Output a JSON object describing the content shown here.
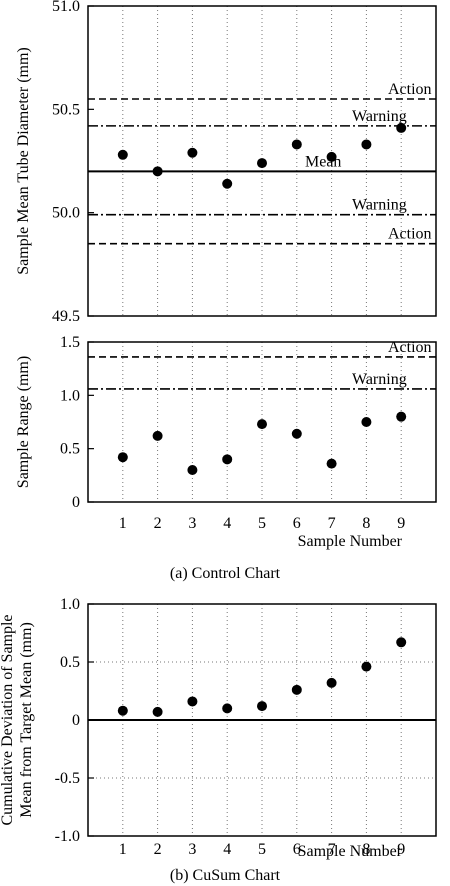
{
  "chart_data": [
    {
      "type": "scatter",
      "ylabel": "Sample Mean Tube Diameter (mm)",
      "xlabel": "",
      "x": [
        1,
        2,
        3,
        4,
        5,
        6,
        7,
        8,
        9
      ],
      "y": [
        50.28,
        50.2,
        50.29,
        50.14,
        50.24,
        50.33,
        50.27,
        50.33,
        50.41
      ],
      "xlim": [
        0,
        10
      ],
      "ylim": [
        49.5,
        51.0
      ],
      "yticks": [
        "49.5",
        "50.0",
        "50.5",
        "51.0"
      ],
      "xtick_labels_shown": false,
      "grid": "x-dotted",
      "reference_lines": [
        {
          "label": "Action",
          "y": 50.55,
          "style": "dashed"
        },
        {
          "label": "Warning",
          "y": 50.42,
          "style": "dashdot"
        },
        {
          "label": "Mean",
          "y": 50.2,
          "style": "solid"
        },
        {
          "label": "Warning",
          "y": 49.99,
          "style": "dashdot"
        },
        {
          "label": "Action",
          "y": 49.85,
          "style": "dashed"
        }
      ]
    },
    {
      "type": "scatter",
      "ylabel": "Sample Range (mm)",
      "xlabel": "Sample Number",
      "x": [
        1,
        2,
        3,
        4,
        5,
        6,
        7,
        8,
        9
      ],
      "y": [
        0.42,
        0.62,
        0.3,
        0.4,
        0.73,
        0.64,
        0.36,
        0.75,
        0.8
      ],
      "xlim": [
        0,
        10
      ],
      "ylim": [
        0,
        1.5
      ],
      "yticks": [
        "0",
        "0.5",
        "1.0",
        "1.5"
      ],
      "xticks": [
        "1",
        "2",
        "3",
        "4",
        "5",
        "6",
        "7",
        "8",
        "9"
      ],
      "grid": "x-dotted",
      "reference_lines": [
        {
          "label": "Action",
          "y": 1.36,
          "style": "dashed"
        },
        {
          "label": "Warning",
          "y": 1.06,
          "style": "dashdot"
        }
      ]
    },
    {
      "type": "scatter",
      "ylabel": "Cumulative Deviation of Sample Mean from Target Mean (mm)",
      "ylabel_lines": [
        "Cumulative Deviation of Sample",
        "Mean from Target Mean (mm)"
      ],
      "xlabel": "Sample Number",
      "x": [
        1,
        2,
        3,
        4,
        5,
        6,
        7,
        8,
        9
      ],
      "y": [
        0.08,
        0.07,
        0.16,
        0.1,
        0.12,
        0.26,
        0.32,
        0.46,
        0.67
      ],
      "xlim": [
        0,
        10
      ],
      "ylim": [
        -1.0,
        1.0
      ],
      "yticks": [
        "-1.0",
        "-0.5",
        "0",
        "0.5",
        "1.0"
      ],
      "xticks": [
        "1",
        "2",
        "3",
        "4",
        "5",
        "6",
        "7",
        "8",
        "9"
      ],
      "grid": "both-dotted",
      "reference_lines": [
        {
          "label": "",
          "y": 0,
          "style": "solid"
        }
      ]
    }
  ],
  "captions": {
    "a": "(a) Control Chart",
    "b": "(b) CuSum Chart"
  }
}
